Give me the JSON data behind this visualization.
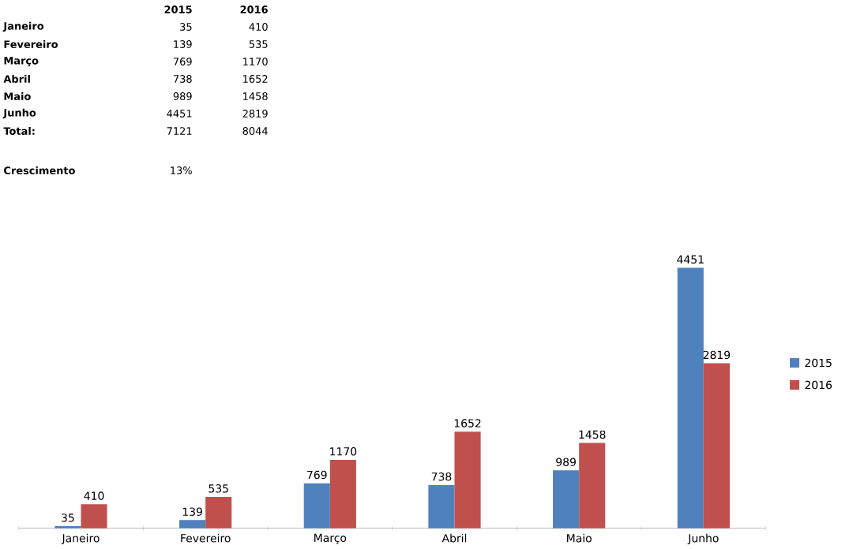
{
  "chart_data": {
    "type": "bar",
    "categories": [
      "Janeiro",
      "Fevereiro",
      "Março",
      "Abril",
      "Maio",
      "Junho"
    ],
    "series": [
      {
        "name": "2015",
        "color": "#4f81bd",
        "values": [
          35,
          139,
          769,
          738,
          989,
          4451
        ]
      },
      {
        "name": "2016",
        "color": "#c0504d",
        "values": [
          410,
          535,
          1170,
          1652,
          1458,
          2819
        ]
      }
    ],
    "data_labels": true,
    "legend": "right",
    "annotations": [
      "35",
      "410",
      "139",
      "535",
      "769",
      "1170",
      "738",
      "1652",
      "989",
      "1458",
      "4451",
      "2819",
      "Total:",
      "7121",
      "8044",
      "Crescimento",
      "13%"
    ]
  }
}
